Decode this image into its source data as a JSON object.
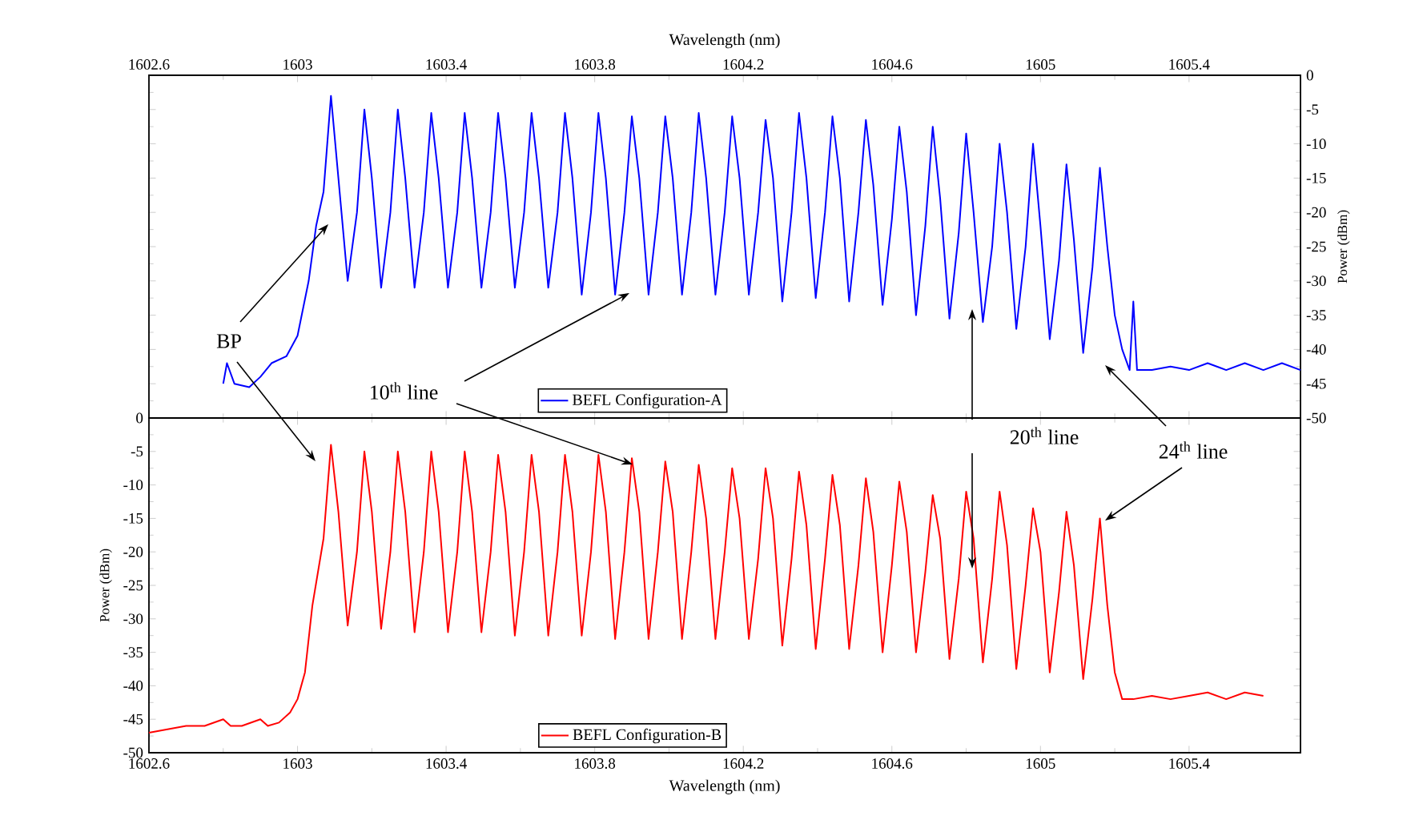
{
  "chart_data": [
    {
      "type": "line",
      "xlabel": "Wavelength (nm)",
      "ylabel": "Power (dBm)",
      "xlim": [
        1602.6,
        1605.7
      ],
      "ylim": [
        -50,
        0
      ],
      "xticks": [
        1602.6,
        1603,
        1603.4,
        1603.8,
        1604.2,
        1604.6,
        1605,
        1605.4
      ],
      "yticks": [
        0,
        -5,
        -10,
        -15,
        -20,
        -25,
        -30,
        -35,
        -40,
        -45,
        -50
      ],
      "legend": "bottom",
      "marker": "none",
      "line_style": "solid",
      "annotations": [
        "BP",
        "10$^{th}$ line",
        "20$^{th}$ line",
        "24$^{th}$ line"
      ],
      "x": [
        1602.8,
        1602.81,
        1602.83,
        1602.87,
        1602.9,
        1602.93,
        1602.97,
        1603.0,
        1603.03,
        1603.05,
        1603.07,
        1603.09,
        1603.11,
        1603.135,
        1603.16,
        1603.18,
        1603.2,
        1603.225,
        1603.25,
        1603.27,
        1603.29,
        1603.315,
        1603.34,
        1603.36,
        1603.38,
        1603.405,
        1603.43,
        1603.45,
        1603.47,
        1603.495,
        1603.52,
        1603.54,
        1603.56,
        1603.585,
        1603.61,
        1603.63,
        1603.65,
        1603.675,
        1603.7,
        1603.72,
        1603.74,
        1603.765,
        1603.79,
        1603.81,
        1603.83,
        1603.855,
        1603.88,
        1603.9,
        1603.92,
        1603.945,
        1603.97,
        1603.99,
        1604.01,
        1604.035,
        1604.06,
        1604.08,
        1604.1,
        1604.125,
        1604.15,
        1604.17,
        1604.19,
        1604.215,
        1604.24,
        1604.26,
        1604.28,
        1604.305,
        1604.33,
        1604.35,
        1604.37,
        1604.395,
        1604.42,
        1604.44,
        1604.46,
        1604.485,
        1604.51,
        1604.53,
        1604.55,
        1604.575,
        1604.6,
        1604.62,
        1604.64,
        1604.665,
        1604.69,
        1604.71,
        1604.73,
        1604.755,
        1604.78,
        1604.8,
        1604.82,
        1604.845,
        1604.87,
        1604.89,
        1604.91,
        1604.935,
        1604.96,
        1604.98,
        1605.0,
        1605.025,
        1605.05,
        1605.07,
        1605.09,
        1605.115,
        1605.14,
        1605.16,
        1605.18,
        1605.2,
        1605.22,
        1605.24,
        1605.25,
        1605.26,
        1605.3,
        1605.35,
        1605.4,
        1605.45,
        1605.5,
        1605.55,
        1605.6,
        1605.65,
        1605.7
      ],
      "series": [
        {
          "name": "BEFL Configuration-A",
          "color": "#0000ff",
          "values": [
            -45,
            -42,
            -45,
            -45.5,
            -44,
            -42,
            -41,
            -38,
            -30,
            -22,
            -17,
            -3,
            -15,
            -30,
            -20,
            -5,
            -15,
            -31,
            -20,
            -5,
            -15,
            -31,
            -20,
            -5.5,
            -15,
            -31,
            -20,
            -5.5,
            -15,
            -31,
            -20,
            -5.5,
            -15,
            -31,
            -20,
            -5.5,
            -15,
            -31,
            -20,
            -5.5,
            -15,
            -32,
            -20,
            -5.5,
            -15,
            -32,
            -20,
            -6,
            -15,
            -32,
            -20,
            -6,
            -15,
            -32,
            -20,
            -5.5,
            -15,
            -32,
            -20,
            -6,
            -15,
            -32,
            -20,
            -6.5,
            -15,
            -33,
            -20,
            -5.5,
            -15,
            -32.5,
            -20,
            -6,
            -15,
            -33,
            -20,
            -6.5,
            -16,
            -33.5,
            -21,
            -7.5,
            -17,
            -35,
            -22,
            -7.5,
            -18,
            -35.5,
            -23,
            -8.5,
            -20,
            -36,
            -25,
            -10,
            -20,
            -37,
            -25,
            -10,
            -22,
            -38.5,
            -27,
            -13,
            -24,
            -40.5,
            -28,
            -13.5,
            -25,
            -35,
            -40,
            -43,
            -33,
            -43,
            -43,
            -42.5,
            -43,
            -42,
            -43,
            -42,
            -43,
            -42,
            -43
          ]
        }
      ]
    },
    {
      "type": "line",
      "xlabel": "Wavelength (nm)",
      "ylabel": "Power (dBm)",
      "xlim": [
        1602.6,
        1605.7
      ],
      "ylim": [
        -50,
        0
      ],
      "xticks": [
        1602.6,
        1603,
        1603.4,
        1603.8,
        1604.2,
        1604.6,
        1605,
        1605.4
      ],
      "yticks": [
        0,
        -5,
        -10,
        -15,
        -20,
        -25,
        -30,
        -35,
        -40,
        -45,
        -50
      ],
      "legend": "bottom",
      "marker": "none",
      "line_style": "solid",
      "x": [
        1602.6,
        1602.65,
        1602.7,
        1602.75,
        1602.8,
        1602.82,
        1602.85,
        1602.9,
        1602.92,
        1602.95,
        1602.98,
        1603.0,
        1603.02,
        1603.04,
        1603.07,
        1603.09,
        1603.11,
        1603.135,
        1603.16,
        1603.18,
        1603.2,
        1603.225,
        1603.25,
        1603.27,
        1603.29,
        1603.315,
        1603.34,
        1603.36,
        1603.38,
        1603.405,
        1603.43,
        1603.45,
        1603.47,
        1603.495,
        1603.52,
        1603.54,
        1603.56,
        1603.585,
        1603.61,
        1603.63,
        1603.65,
        1603.675,
        1603.7,
        1603.72,
        1603.74,
        1603.765,
        1603.79,
        1603.81,
        1603.83,
        1603.855,
        1603.88,
        1603.9,
        1603.92,
        1603.945,
        1603.97,
        1603.99,
        1604.01,
        1604.035,
        1604.06,
        1604.08,
        1604.1,
        1604.125,
        1604.15,
        1604.17,
        1604.19,
        1604.215,
        1604.24,
        1604.26,
        1604.28,
        1604.305,
        1604.33,
        1604.35,
        1604.37,
        1604.395,
        1604.42,
        1604.44,
        1604.46,
        1604.485,
        1604.51,
        1604.53,
        1604.55,
        1604.575,
        1604.6,
        1604.62,
        1604.64,
        1604.665,
        1604.69,
        1604.71,
        1604.73,
        1604.755,
        1604.78,
        1604.8,
        1604.82,
        1604.845,
        1604.87,
        1604.89,
        1604.91,
        1604.935,
        1604.96,
        1604.98,
        1605.0,
        1605.025,
        1605.05,
        1605.07,
        1605.09,
        1605.115,
        1605.14,
        1605.16,
        1605.18,
        1605.2,
        1605.22,
        1605.25,
        1605.3,
        1605.35,
        1605.4,
        1605.45,
        1605.5,
        1605.55,
        1605.6
      ],
      "series": [
        {
          "name": "BEFL Configuration-B",
          "color": "#ff0000",
          "values": [
            -47,
            -46.5,
            -46,
            -46,
            -45,
            -46,
            -46,
            -45,
            -46,
            -45.5,
            -44,
            -42,
            -38,
            -28,
            -18,
            -4,
            -14,
            -31,
            -20,
            -5,
            -14,
            -31.5,
            -20,
            -5,
            -14,
            -32,
            -20,
            -5,
            -14,
            -32,
            -20,
            -5,
            -14,
            -32,
            -20,
            -5.5,
            -14,
            -32.5,
            -20,
            -5.5,
            -14,
            -32.5,
            -20,
            -5.5,
            -14,
            -32.5,
            -20,
            -5.5,
            -14,
            -33,
            -20,
            -6,
            -14,
            -33,
            -20,
            -6.5,
            -14,
            -33,
            -20,
            -7,
            -15,
            -33,
            -20,
            -7.5,
            -15,
            -33,
            -21,
            -7.5,
            -15,
            -34,
            -21,
            -8,
            -16,
            -34.5,
            -21,
            -8.5,
            -16,
            -34.5,
            -22,
            -9,
            -17,
            -35,
            -22,
            -9.5,
            -17,
            -35,
            -23,
            -11.5,
            -18,
            -36,
            -24,
            -11,
            -18,
            -36.5,
            -24,
            -11,
            -19,
            -37.5,
            -25,
            -13.5,
            -20,
            -38,
            -26,
            -14,
            -22,
            -39,
            -27,
            -15,
            -28,
            -38,
            -42,
            -42,
            -41.5,
            -42,
            -41.5,
            -41,
            -42,
            -41,
            -41.5
          ]
        }
      ]
    }
  ]
}
